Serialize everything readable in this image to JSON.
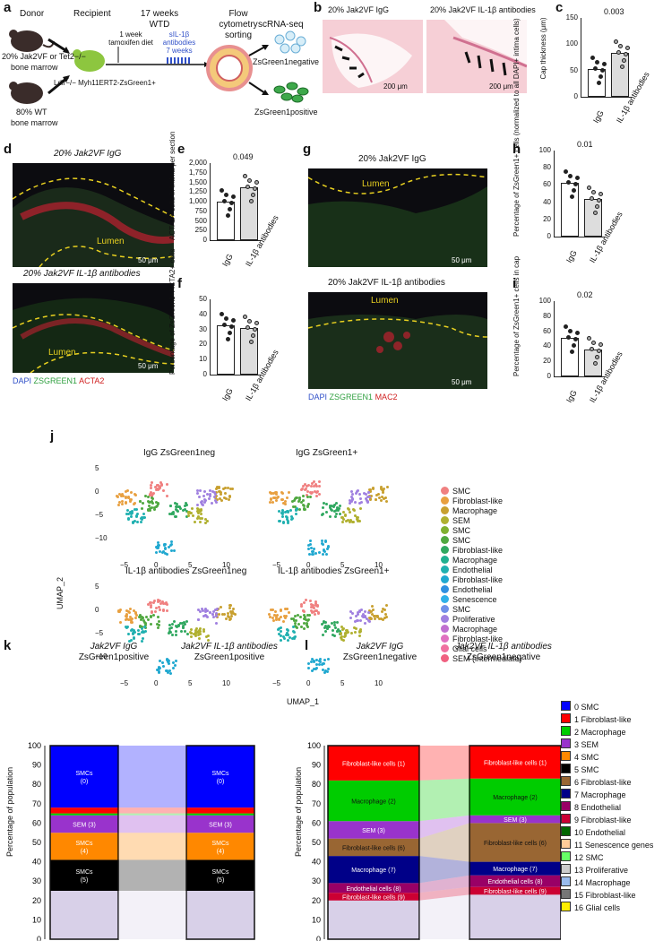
{
  "panels": {
    "a": "a",
    "b": "b",
    "c": "c",
    "d": "d",
    "e": "e",
    "f": "f",
    "g": "g",
    "h": "h",
    "i": "i",
    "j": "j",
    "k": "k",
    "l": "l"
  },
  "schematic": {
    "donor": "Donor",
    "recipient": "Recipient",
    "weeks": "17 weeks",
    "wtd": "WTD",
    "flow": "Flow",
    "cytometry": "cytometry",
    "sorting": "sorting",
    "scrnaseq": "scRNA-seq",
    "donor_line1": "20% Jak2VF or Tet2−/−",
    "donor_line2": "bone marrow",
    "wt_line1": "80% WT",
    "wt_line2": "bone marrow",
    "recipient_genotype": "Ldlr−/− Myh11ERT2-ZsGreen1+",
    "tamox1": "1 week",
    "tamox2": "tamoxifen diet",
    "antibody1": "sIL-1β",
    "antibody2": "antibodies",
    "antibody3": "7 weeks",
    "neg": "ZsGreen1negative",
    "pos": "ZsGreen1positive"
  },
  "histology": {
    "b_left": "20% Jak2VF IgG",
    "b_right": "20% Jak2VF IL-1β antibodies",
    "b_scale": "200 μm",
    "d_top": "20% Jak2VF IgG",
    "d_bottom": "20% Jak2VF IL-1β antibodies",
    "g_top": "20% Jak2VF IgG",
    "g_bottom": "20% Jak2VF IL-1β antibodies",
    "lumen": "Lumen",
    "scale50": "50 μm",
    "d_legend_dapi": "DAPI",
    "d_legend_zs": "ZSGREEN1",
    "d_legend_acta2": "ACTA2",
    "g_legend_mac2": "MAC2"
  },
  "bar_panels": [
    {
      "id": "c",
      "ylabel": "Cap thickness (μm)",
      "pvalue": "0.003",
      "yticks": [
        "0",
        "50",
        "100",
        "150"
      ],
      "groups": [
        "IgG",
        "IL-1β antibodies"
      ],
      "values": [
        52,
        83
      ],
      "ymax": 150
    },
    {
      "id": "e",
      "ylabel": "ACTA2+ cells in intima per section",
      "pvalue": "0.049",
      "yticks": [
        "0",
        "250",
        "500",
        "750",
        "1,000",
        "1,250",
        "1,500",
        "1,750",
        "2,000"
      ],
      "groups": [
        "IgG",
        "IL-1β antibodies"
      ],
      "values": [
        1010,
        1370
      ],
      "ymax": 2000
    },
    {
      "id": "f",
      "ylabel": "Percentage of ZsGreen1+ACTA2+ cells",
      "pvalue": "",
      "yticks": [
        "0",
        "10",
        "20",
        "30",
        "40",
        "50"
      ],
      "groups": [
        "IgG",
        "IL-1β antibodies"
      ],
      "values": [
        33,
        31
      ],
      "ymax": 50
    },
    {
      "id": "h",
      "ylabel": "Percentage of ZsGreen1+ cells (normalized to all DAPI+ intima cells)",
      "pvalue": "0.01",
      "yticks": [
        "0",
        "20",
        "40",
        "60",
        "80",
        "100"
      ],
      "groups": [
        "IgG",
        "IL-1β antibodies"
      ],
      "values": [
        62,
        44
      ],
      "ymax": 100
    },
    {
      "id": "i",
      "ylabel": "Percentage of ZsGreen1+ cells in cap",
      "pvalue": "0.02",
      "yticks": [
        "0",
        "20",
        "40",
        "60",
        "80",
        "100"
      ],
      "groups": [
        "IgG",
        "IL-1β antibodies"
      ],
      "values": [
        51,
        36
      ],
      "ymax": 100
    }
  ],
  "umap": {
    "titles": [
      "IgG ZsGreen1neg",
      "IgG ZsGreen1+",
      "IL-1β antibodies ZsGreen1neg",
      "IL-1β antibodies ZsGreen1+"
    ],
    "xlabel": "UMAP_1",
    "ylabel": "UMAP_2",
    "yticks": [
      "5",
      "0",
      "−5",
      "−10"
    ],
    "xticks": [
      "−5",
      "0",
      "5",
      "10"
    ],
    "legend": [
      {
        "label": "SMC",
        "color": "#f08080"
      },
      {
        "label": "Fibroblast-like",
        "color": "#e8a040"
      },
      {
        "label": "Macrophage",
        "color": "#c8a030"
      },
      {
        "label": "SEM",
        "color": "#b0b030"
      },
      {
        "label": "SMC",
        "color": "#80b030"
      },
      {
        "label": "SMC",
        "color": "#50a840"
      },
      {
        "label": "Fibroblast-like",
        "color": "#30a860"
      },
      {
        "label": "Macrophage",
        "color": "#20b090"
      },
      {
        "label": "Endothelial",
        "color": "#20b0b0"
      },
      {
        "label": "Fibroblast-like",
        "color": "#20a8d0"
      },
      {
        "label": "Endothelial",
        "color": "#3090e0"
      },
      {
        "label": "Senescence",
        "color": "#30b0e8"
      },
      {
        "label": "SMC",
        "color": "#7090e8"
      },
      {
        "label": "Proliferative",
        "color": "#a080e0"
      },
      {
        "label": "Macrophage",
        "color": "#c070d0"
      },
      {
        "label": "Fibroblast-like",
        "color": "#e070c0"
      },
      {
        "label": "Glial cells",
        "color": "#f070a0"
      },
      {
        "label": "SEM (intermediate)",
        "color": "#f06080"
      }
    ]
  },
  "chart_data": [
    {
      "type": "bar",
      "title": "k",
      "xlabel": "",
      "ylabel": "Percentage of population",
      "ylim": [
        0,
        100
      ],
      "categories": [
        "Jak2VF IgG ZsGreen1positive",
        "Jak2VF IL-1β antibodies ZsGreen1positive"
      ],
      "series": [
        {
          "name": "0 SMC",
          "values": [
            32,
            32
          ]
        },
        {
          "name": "1 Fibroblast-like",
          "values": [
            3,
            3
          ]
        },
        {
          "name": "2 Macrophage",
          "values": [
            1,
            1
          ]
        },
        {
          "name": "3 SEM",
          "values": [
            9,
            9
          ]
        },
        {
          "name": "4 SMC",
          "values": [
            14,
            14
          ]
        },
        {
          "name": "5 SMC",
          "values": [
            16,
            16
          ]
        },
        {
          "name": "other",
          "values": [
            25,
            25
          ]
        }
      ],
      "inbar_labels": [
        "SMCs (0)",
        "SEM (3)",
        "SMCs (4)",
        "SMCs (5)"
      ]
    },
    {
      "type": "bar",
      "title": "l",
      "xlabel": "",
      "ylabel": "Percentage of population",
      "ylim": [
        0,
        100
      ],
      "categories": [
        "Jak2VF IgG ZsGreen1negative",
        "Jak2VF IL-1β antibodies ZsGreen1negative"
      ],
      "series": [
        {
          "name": "1 Fibroblast-like",
          "values": [
            18,
            17
          ]
        },
        {
          "name": "2 Macrophage",
          "values": [
            21,
            19
          ]
        },
        {
          "name": "3 SEM",
          "values": [
            9,
            4
          ]
        },
        {
          "name": "6 Fibroblast-like",
          "values": [
            9,
            20
          ]
        },
        {
          "name": "7 Macrophage",
          "values": [
            14,
            7
          ]
        },
        {
          "name": "8 Endothelial",
          "values": [
            5,
            6
          ]
        },
        {
          "name": "9 Fibroblast-like",
          "values": [
            4,
            4
          ]
        },
        {
          "name": "other",
          "values": [
            20,
            23
          ]
        }
      ],
      "inbar_labels": [
        "Fibroblast-like cells (1)",
        "Macrophage (2)",
        "SEM (3)",
        "Fibroblast-like cells (6)",
        "Macrophage (7)",
        "Endothelial cells (8)",
        "Fibroblast-like cells (9)"
      ]
    }
  ],
  "stack": {
    "ylabel": "Percentage of population",
    "yticks": [
      "0",
      "10",
      "20",
      "30",
      "40",
      "50",
      "60",
      "70",
      "80",
      "90",
      "100"
    ],
    "k_left_1": "Jak2VF IgG",
    "k_left_2": "ZsGreen1positive",
    "k_right_1": "Jak2VF IL-1β antibodies",
    "k_right_2": "ZsGreen1positive",
    "l_left_1": "Jak2VF IgG",
    "l_left_2": "ZsGreen1negative",
    "l_right_1": "Jak2VF IL-1β antibodies",
    "l_right_2": "ZsGreen1negative",
    "k_labels": {
      "smc0": "SMCs",
      "smc0b": "(0)",
      "sem3": "SEM (3)",
      "smc4": "SMCs",
      "smc4b": "(4)",
      "smc5": "SMCs",
      "smc5b": "(5)"
    },
    "l_labels": {
      "fib1": "Fibroblast-like cells (1)",
      "mac2": "Macrophage (2)",
      "sem3": "SEM (3)",
      "fib6": "Fibroblast-like cells (6)",
      "mac7": "Macrophage (7)",
      "endo8": "Endothelial cells (8)",
      "fib9": "Fibroblast-like cells (9)"
    }
  },
  "cluster_legend": [
    {
      "label": "0 SMC",
      "color": "#0000ff"
    },
    {
      "label": "1 Fibroblast-like",
      "color": "#ff0000"
    },
    {
      "label": "2 Macrophage",
      "color": "#00cc00"
    },
    {
      "label": "3 SEM",
      "color": "#9933cc"
    },
    {
      "label": "4 SMC",
      "color": "#ff8800"
    },
    {
      "label": "5 SMC",
      "color": "#000000"
    },
    {
      "label": "6 Fibroblast-like",
      "color": "#996633"
    },
    {
      "label": "7 Macrophage",
      "color": "#000088"
    },
    {
      "label": "8 Endothelial",
      "color": "#990066"
    },
    {
      "label": "9 Fibroblast-like",
      "color": "#cc0033"
    },
    {
      "label": "10 Endothelial",
      "color": "#006600"
    },
    {
      "label": "11 Senescence genes",
      "color": "#ffcc99"
    },
    {
      "label": "12 SMC",
      "color": "#66ff66"
    },
    {
      "label": "13 Proliferative",
      "color": "#cccccc"
    },
    {
      "label": "14 Macrophage",
      "color": "#99bbee"
    },
    {
      "label": "15 Fibroblast-like",
      "color": "#777777"
    },
    {
      "label": "16 Glial cells",
      "color": "#ffee00"
    }
  ]
}
